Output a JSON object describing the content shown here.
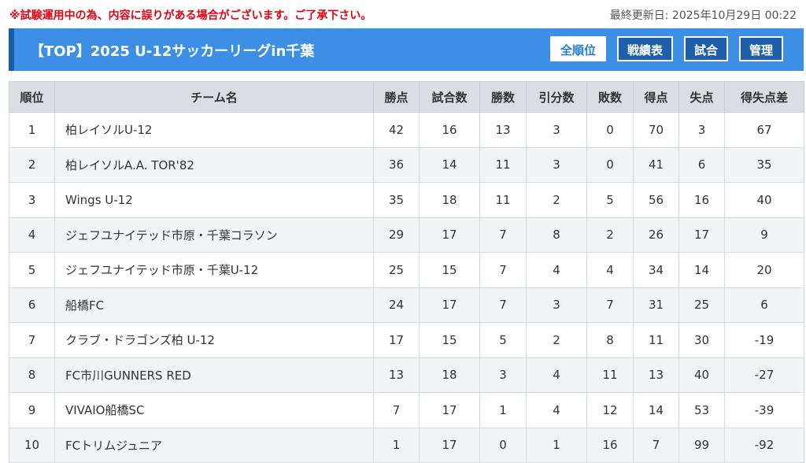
{
  "notice": "※試験運用中の為、内容に誤りがある場合がございます。ご了承下さい。",
  "updated": "最終更新日: 2025年10月29日 00:22",
  "header": {
    "title": "【TOP】2025 U-12サッカーリーグin千葉",
    "nav": [
      "全順位",
      "戦績表",
      "試合",
      "管理"
    ],
    "active_nav": "全順位"
  },
  "table": {
    "columns": [
      "順位",
      "チーム名",
      "勝点",
      "試合数",
      "勝数",
      "引分数",
      "敗数",
      "得点",
      "失点",
      "得失点差"
    ],
    "rows": [
      [
        "1",
        "柏レイソルU-12",
        "42",
        "16",
        "13",
        "3",
        "0",
        "70",
        "3",
        "67"
      ],
      [
        "2",
        "柏レイソルA.A. TOR'82",
        "36",
        "14",
        "11",
        "3",
        "0",
        "41",
        "6",
        "35"
      ],
      [
        "3",
        "Wings U-12",
        "35",
        "18",
        "11",
        "2",
        "5",
        "56",
        "16",
        "40"
      ],
      [
        "4",
        "ジェフユナイテッド市原・千葉コラソン",
        "29",
        "17",
        "7",
        "8",
        "2",
        "26",
        "17",
        "9"
      ],
      [
        "5",
        "ジェフユナイテッド市原・千葉U-12",
        "25",
        "15",
        "7",
        "4",
        "4",
        "34",
        "14",
        "20"
      ],
      [
        "6",
        "船橋FC",
        "24",
        "17",
        "7",
        "3",
        "7",
        "31",
        "25",
        "6"
      ],
      [
        "7",
        "クラブ・ドラゴンズ柏 U-12",
        "17",
        "15",
        "5",
        "2",
        "8",
        "11",
        "30",
        "-19"
      ],
      [
        "8",
        "FC市川GUNNERS RED",
        "13",
        "18",
        "3",
        "4",
        "11",
        "13",
        "40",
        "-27"
      ],
      [
        "9",
        "VIVAIO船橋SC",
        "7",
        "17",
        "1",
        "4",
        "12",
        "14",
        "53",
        "-39"
      ],
      [
        "10",
        "FCトリムジュニア",
        "1",
        "17",
        "0",
        "1",
        "16",
        "7",
        "99",
        "-92"
      ]
    ]
  }
}
